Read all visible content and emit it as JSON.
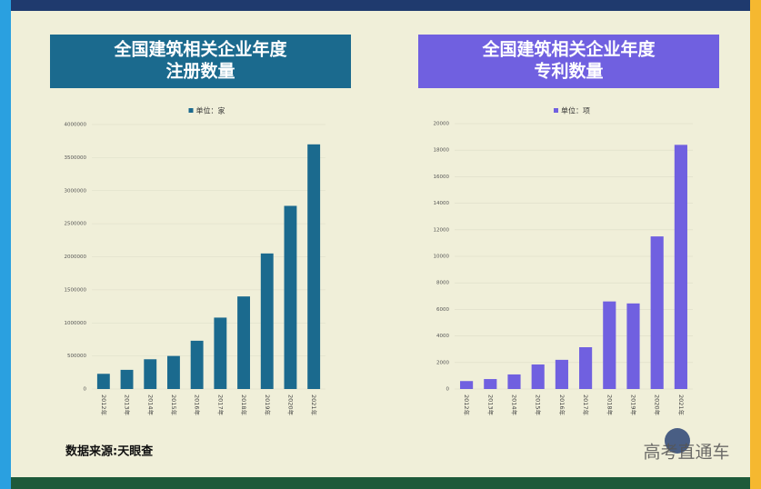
{
  "chart_data": [
    {
      "type": "bar",
      "title": [
        "全国建筑相关企业年度",
        "注册数量"
      ],
      "legend": "单位：家",
      "color": "#1b6a8e",
      "categories": [
        "2012年",
        "2013年",
        "2014年",
        "2015年",
        "2016年",
        "2017年",
        "2018年",
        "2019年",
        "2020年",
        "2021年"
      ],
      "values": [
        230000,
        290000,
        450000,
        500000,
        730000,
        1080000,
        1400000,
        2050000,
        2770000,
        3700000
      ],
      "ylim": [
        0,
        4000000
      ],
      "yticks": [
        0,
        500000,
        1000000,
        1500000,
        2000000,
        2500000,
        3000000,
        3500000,
        4000000
      ],
      "grid": true
    },
    {
      "type": "bar",
      "title": [
        "全国建筑相关企业年度",
        "专利数量"
      ],
      "legend": "单位：项",
      "color": "#7060e0",
      "categories": [
        "2012年",
        "2013年",
        "2014年",
        "2015年",
        "2016年",
        "2017年",
        "2018年",
        "2019年",
        "2020年",
        "2021年"
      ],
      "values": [
        600,
        750,
        1100,
        1850,
        2200,
        3150,
        6600,
        6450,
        11500,
        18400
      ],
      "ylim": [
        0,
        20000
      ],
      "yticks": [
        0,
        2000,
        4000,
        6000,
        8000,
        10000,
        12000,
        14000,
        16000,
        18000,
        20000
      ],
      "grid": true
    }
  ],
  "source": "数据来源:天眼查",
  "watermark": "高考直通车"
}
